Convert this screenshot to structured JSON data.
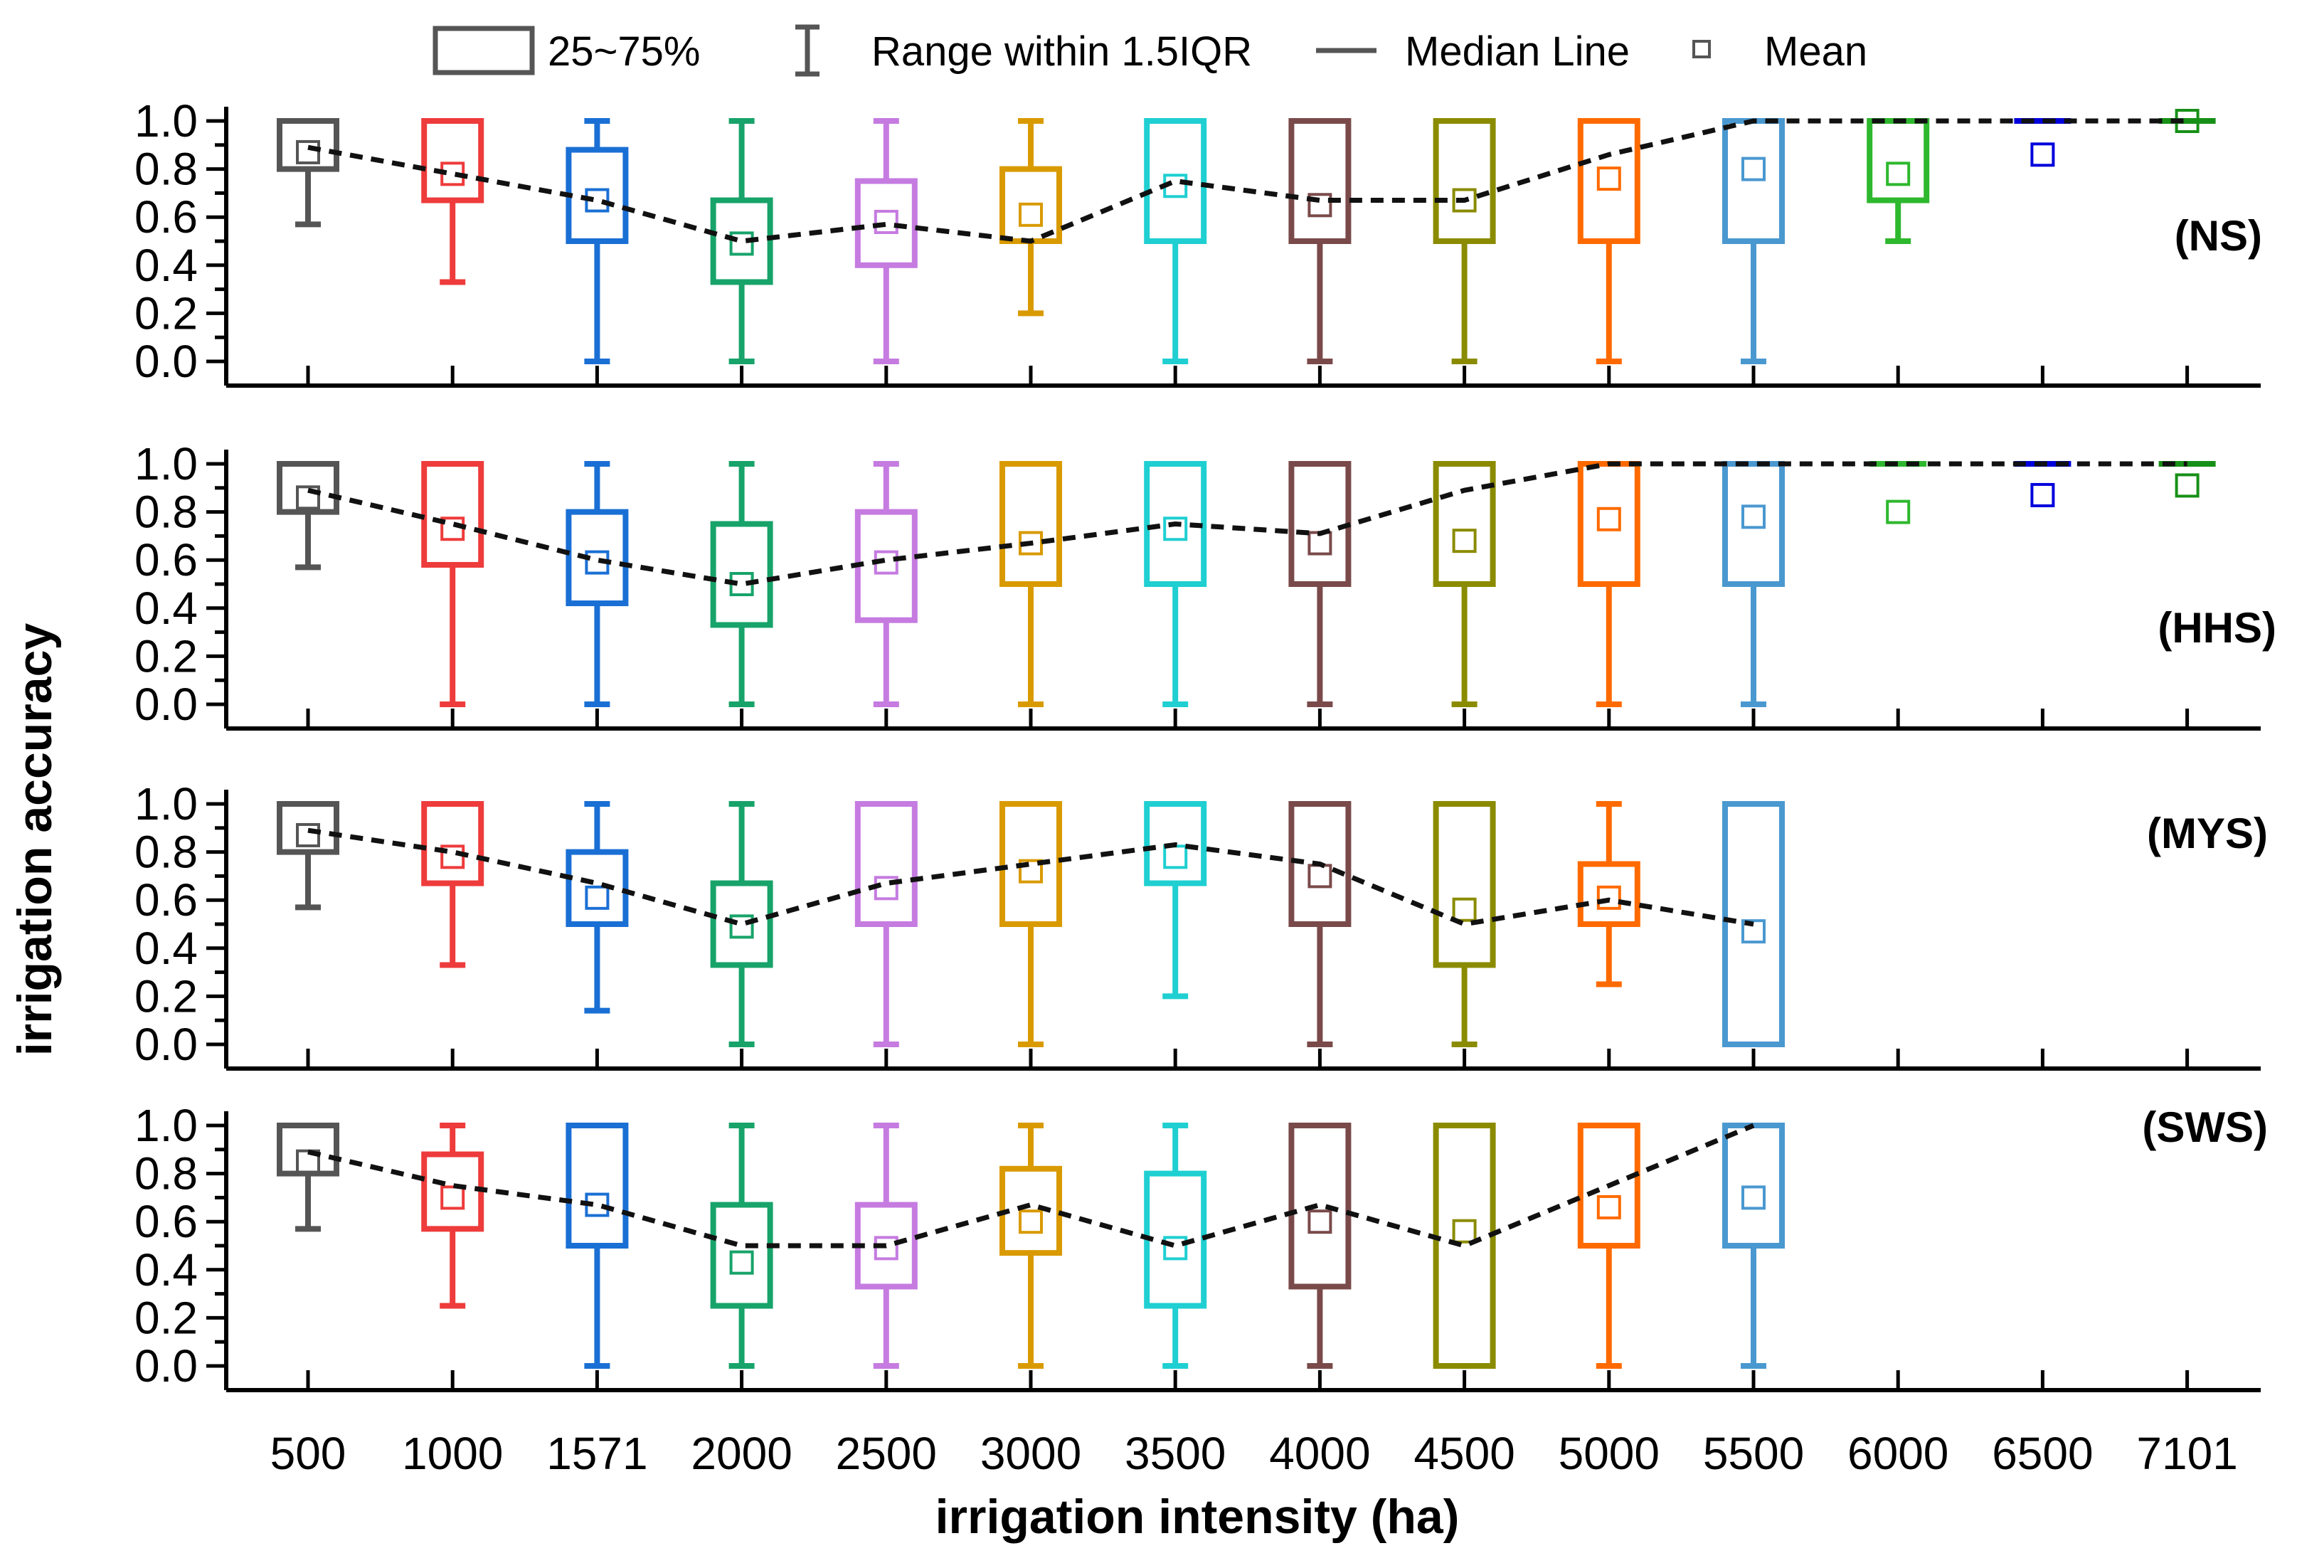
{
  "chart_data": {
    "type": "boxplot",
    "xlabel": "irrigation intensity (ha)",
    "ylabel": "irrigation accuracy",
    "ylim": [
      0,
      1.0
    ],
    "y_ticks": [
      "0.0",
      "0.2",
      "0.4",
      "0.6",
      "0.8",
      "1.0"
    ],
    "categories": [
      "500",
      "1000",
      "1571",
      "2000",
      "2500",
      "3000",
      "3500",
      "4000",
      "4500",
      "5000",
      "5500",
      "6000",
      "6500",
      "7101"
    ],
    "colors": [
      "#555555",
      "#ee3b3b",
      "#1a6fd4",
      "#17a36a",
      "#c57be0",
      "#d99a00",
      "#1fcfd1",
      "#7a4a4a",
      "#8b8b00",
      "#ff6a00",
      "#4a98d0",
      "#2eb82e",
      "#0000dd",
      "#179017"
    ],
    "legend": {
      "box": "25~75%",
      "whisker": "Range within 1.5IQR",
      "median": "Median Line",
      "mean": "Mean"
    },
    "panels": [
      {
        "label": "(NS)",
        "boxes": [
          {
            "q1": 0.8,
            "q3": 1.0,
            "wlo": 0.57,
            "whi": 1.0,
            "median": 0.89,
            "mean": 0.87
          },
          {
            "q1": 0.67,
            "q3": 1.0,
            "wlo": 0.33,
            "whi": 1.0,
            "median": 0.78,
            "mean": 0.78
          },
          {
            "q1": 0.5,
            "q3": 0.88,
            "wlo": 0.0,
            "whi": 1.0,
            "median": 0.67,
            "mean": 0.67
          },
          {
            "q1": 0.33,
            "q3": 0.67,
            "wlo": 0.0,
            "whi": 1.0,
            "median": 0.5,
            "mean": 0.49
          },
          {
            "q1": 0.4,
            "q3": 0.75,
            "wlo": 0.0,
            "whi": 1.0,
            "median": 0.57,
            "mean": 0.58
          },
          {
            "q1": 0.5,
            "q3": 0.8,
            "wlo": 0.2,
            "whi": 1.0,
            "median": 0.5,
            "mean": 0.61
          },
          {
            "q1": 0.5,
            "q3": 1.0,
            "wlo": 0.0,
            "whi": 1.0,
            "median": 0.75,
            "mean": 0.73
          },
          {
            "q1": 0.5,
            "q3": 1.0,
            "wlo": 0.0,
            "whi": 1.0,
            "median": 0.67,
            "mean": 0.65
          },
          {
            "q1": 0.5,
            "q3": 1.0,
            "wlo": 0.0,
            "whi": 1.0,
            "median": 0.67,
            "mean": 0.67
          },
          {
            "q1": 0.5,
            "q3": 1.0,
            "wlo": 0.0,
            "whi": 1.0,
            "median": 0.86,
            "mean": 0.76
          },
          {
            "q1": 0.5,
            "q3": 1.0,
            "wlo": 0.0,
            "whi": 1.0,
            "median": 1.0,
            "mean": 0.8
          },
          {
            "q1": 0.67,
            "q3": 1.0,
            "wlo": 0.5,
            "whi": 1.0,
            "median": 1.0,
            "mean": 0.78
          },
          {
            "q1": 1.0,
            "q3": 1.0,
            "wlo": 1.0,
            "whi": 1.0,
            "median": 1.0,
            "mean": 0.86
          },
          {
            "q1": 1.0,
            "q3": 1.0,
            "wlo": 1.0,
            "whi": 1.0,
            "median": 1.0,
            "mean": 1.0
          }
        ]
      },
      {
        "label": "(HHS)",
        "boxes": [
          {
            "q1": 0.8,
            "q3": 1.0,
            "wlo": 0.57,
            "whi": 1.0,
            "median": 0.89,
            "mean": 0.86
          },
          {
            "q1": 0.58,
            "q3": 1.0,
            "wlo": 0.0,
            "whi": 1.0,
            "median": 0.75,
            "mean": 0.73
          },
          {
            "q1": 0.42,
            "q3": 0.8,
            "wlo": 0.0,
            "whi": 1.0,
            "median": 0.6,
            "mean": 0.59
          },
          {
            "q1": 0.33,
            "q3": 0.75,
            "wlo": 0.0,
            "whi": 1.0,
            "median": 0.5,
            "mean": 0.5
          },
          {
            "q1": 0.35,
            "q3": 0.8,
            "wlo": 0.0,
            "whi": 1.0,
            "median": 0.6,
            "mean": 0.59
          },
          {
            "q1": 0.5,
            "q3": 1.0,
            "wlo": 0.0,
            "whi": 1.0,
            "median": 0.67,
            "mean": 0.67
          },
          {
            "q1": 0.5,
            "q3": 1.0,
            "wlo": 0.0,
            "whi": 1.0,
            "median": 0.75,
            "mean": 0.73
          },
          {
            "q1": 0.5,
            "q3": 1.0,
            "wlo": 0.0,
            "whi": 1.0,
            "median": 0.71,
            "mean": 0.67
          },
          {
            "q1": 0.5,
            "q3": 1.0,
            "wlo": 0.0,
            "whi": 1.0,
            "median": 0.89,
            "mean": 0.68
          },
          {
            "q1": 0.5,
            "q3": 1.0,
            "wlo": 0.0,
            "whi": 1.0,
            "median": 1.0,
            "mean": 0.77
          },
          {
            "q1": 0.5,
            "q3": 1.0,
            "wlo": 0.0,
            "whi": 1.0,
            "median": 1.0,
            "mean": 0.78
          },
          {
            "q1": 1.0,
            "q3": 1.0,
            "wlo": 1.0,
            "whi": 1.0,
            "median": 1.0,
            "mean": 0.8
          },
          {
            "q1": 1.0,
            "q3": 1.0,
            "wlo": 1.0,
            "whi": 1.0,
            "median": 1.0,
            "mean": 0.87
          },
          {
            "q1": 1.0,
            "q3": 1.0,
            "wlo": 1.0,
            "whi": 1.0,
            "median": 1.0,
            "mean": 0.91
          }
        ]
      },
      {
        "label": "(MYS)",
        "boxes": [
          {
            "q1": 0.8,
            "q3": 1.0,
            "wlo": 0.57,
            "whi": 1.0,
            "median": 0.89,
            "mean": 0.87
          },
          {
            "q1": 0.67,
            "q3": 1.0,
            "wlo": 0.33,
            "whi": 1.0,
            "median": 0.8,
            "mean": 0.78
          },
          {
            "q1": 0.5,
            "q3": 0.8,
            "wlo": 0.14,
            "whi": 1.0,
            "median": 0.67,
            "mean": 0.61
          },
          {
            "q1": 0.33,
            "q3": 0.67,
            "wlo": 0.0,
            "whi": 1.0,
            "median": 0.5,
            "mean": 0.49
          },
          {
            "q1": 0.5,
            "q3": 1.0,
            "wlo": 0.0,
            "whi": 1.0,
            "median": 0.67,
            "mean": 0.65
          },
          {
            "q1": 0.5,
            "q3": 1.0,
            "wlo": 0.0,
            "whi": 1.0,
            "median": 0.75,
            "mean": 0.72
          },
          {
            "q1": 0.67,
            "q3": 1.0,
            "wlo": 0.2,
            "whi": 1.0,
            "median": 0.83,
            "mean": 0.78
          },
          {
            "q1": 0.5,
            "q3": 1.0,
            "wlo": 0.0,
            "whi": 1.0,
            "median": 0.75,
            "mean": 0.7
          },
          {
            "q1": 0.33,
            "q3": 1.0,
            "wlo": 0.0,
            "whi": 1.0,
            "median": 0.5,
            "mean": 0.56
          },
          {
            "q1": 0.5,
            "q3": 0.75,
            "wlo": 0.25,
            "whi": 1.0,
            "median": 0.6,
            "mean": 0.61
          },
          {
            "q1": 0.0,
            "q3": 1.0,
            "wlo": 0.0,
            "whi": 1.0,
            "median": 0.5,
            "mean": 0.47
          }
        ]
      },
      {
        "label": "(SWS)",
        "boxes": [
          {
            "q1": 0.8,
            "q3": 1.0,
            "wlo": 0.57,
            "whi": 1.0,
            "median": 0.89,
            "mean": 0.85
          },
          {
            "q1": 0.57,
            "q3": 0.88,
            "wlo": 0.25,
            "whi": 1.0,
            "median": 0.75,
            "mean": 0.7
          },
          {
            "q1": 0.5,
            "q3": 1.0,
            "wlo": 0.0,
            "whi": 1.0,
            "median": 0.67,
            "mean": 0.67
          },
          {
            "q1": 0.25,
            "q3": 0.67,
            "wlo": 0.0,
            "whi": 1.0,
            "median": 0.5,
            "mean": 0.43
          },
          {
            "q1": 0.33,
            "q3": 0.67,
            "wlo": 0.0,
            "whi": 1.0,
            "median": 0.5,
            "mean": 0.49
          },
          {
            "q1": 0.47,
            "q3": 0.82,
            "wlo": 0.0,
            "whi": 1.0,
            "median": 0.67,
            "mean": 0.6
          },
          {
            "q1": 0.25,
            "q3": 0.8,
            "wlo": 0.0,
            "whi": 1.0,
            "median": 0.5,
            "mean": 0.49
          },
          {
            "q1": 0.33,
            "q3": 1.0,
            "wlo": 0.0,
            "whi": 1.0,
            "median": 0.67,
            "mean": 0.6
          },
          {
            "q1": 0.0,
            "q3": 1.0,
            "wlo": 0.0,
            "whi": 1.0,
            "median": 0.5,
            "mean": 0.56
          },
          {
            "q1": 0.5,
            "q3": 1.0,
            "wlo": 0.0,
            "whi": 1.0,
            "median": 0.75,
            "mean": 0.66
          },
          {
            "q1": 0.5,
            "q3": 1.0,
            "wlo": 0.0,
            "whi": 1.0,
            "median": 1.0,
            "mean": 0.7
          }
        ]
      }
    ]
  }
}
